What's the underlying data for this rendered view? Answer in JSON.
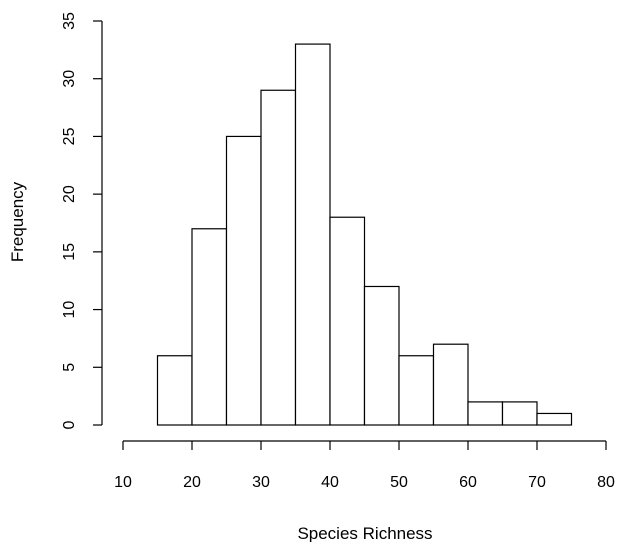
{
  "chart_data": {
    "type": "bar",
    "subtype": "histogram",
    "title": "",
    "xlabel": "Species Richness",
    "ylabel": "Frequency",
    "bins": [
      [
        15,
        20
      ],
      [
        20,
        25
      ],
      [
        25,
        30
      ],
      [
        30,
        35
      ],
      [
        35,
        40
      ],
      [
        40,
        45
      ],
      [
        45,
        50
      ],
      [
        50,
        55
      ],
      [
        55,
        60
      ],
      [
        60,
        65
      ],
      [
        65,
        70
      ],
      [
        70,
        75
      ]
    ],
    "values": [
      6,
      17,
      25,
      29,
      33,
      18,
      12,
      6,
      7,
      2,
      2,
      1
    ],
    "xlim": [
      10,
      80
    ],
    "ylim": [
      0,
      35
    ],
    "x_ticks": [
      "10",
      "20",
      "30",
      "40",
      "50",
      "60",
      "70",
      "80"
    ],
    "y_ticks": [
      "0",
      "5",
      "10",
      "15",
      "20",
      "25",
      "30",
      "35"
    ],
    "grid": false,
    "legend": "none",
    "colors": {
      "bar_fill": "#ffffff",
      "bar_stroke": "#000000",
      "axis": "#000000"
    }
  }
}
